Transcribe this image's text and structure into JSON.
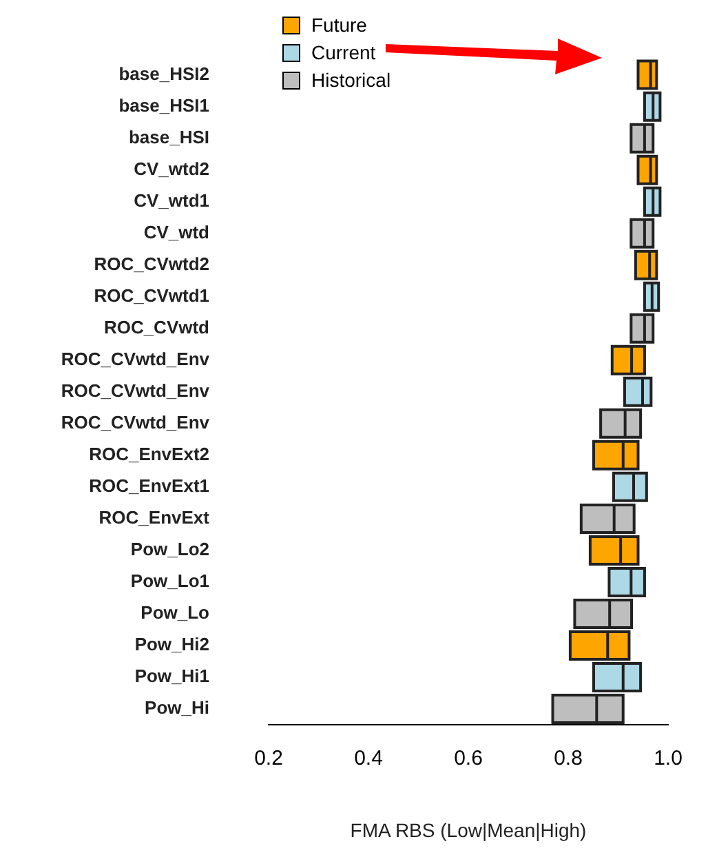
{
  "chart_data": {
    "type": "box",
    "orientation": "horizontal",
    "xlabel": "FMA RBS (Low|Mean|High)",
    "categories": [
      "base_HSI2",
      "base_HSI1",
      "base_HSI",
      "CV_wtd2",
      "CV_wtd1",
      "CV_wtd",
      "ROC_CVwtd2",
      "ROC_CVwtd1",
      "ROC_CVwtd",
      "ROC_CVwtd_Env",
      "ROC_CVwtd_Env",
      "ROC_CVwtd_Env",
      "ROC_EnvExt2",
      "ROC_EnvExt1",
      "ROC_EnvExt",
      "Pow_Lo2",
      "Pow_Lo1",
      "Pow_Lo",
      "Pow_Hi2",
      "Pow_Hi1",
      "Pow_Hi"
    ],
    "xlim": [
      0.2,
      1.0
    ],
    "xticks": [
      {
        "value": 0.2,
        "label": "0.2"
      },
      {
        "value": 0.4,
        "label": "0.4"
      },
      {
        "value": 0.6,
        "label": "0.6"
      },
      {
        "value": 0.8,
        "label": "0.8"
      },
      {
        "value": 1.0,
        "label": "1.0"
      }
    ],
    "legend": "top left",
    "grid": false,
    "series": [
      {
        "name": "Future",
        "color": "#ffa500",
        "boxes": [
          {
            "low": 0.94,
            "q1": 0.94,
            "median": 0.965,
            "q3": 0.977,
            "high": 0.977
          },
          null,
          null,
          {
            "low": 0.94,
            "q1": 0.94,
            "median": 0.965,
            "q3": 0.977,
            "high": 0.977
          },
          null,
          null,
          {
            "low": 0.935,
            "q1": 0.935,
            "median": 0.963,
            "q3": 0.977,
            "high": 0.977
          },
          null,
          null,
          {
            "low": 0.888,
            "q1": 0.888,
            "median": 0.927,
            "q3": 0.953,
            "high": 0.953
          },
          null,
          null,
          {
            "low": 0.851,
            "q1": 0.851,
            "median": 0.91,
            "q3": 0.94,
            "high": 0.94
          },
          null,
          null,
          {
            "low": 0.844,
            "q1": 0.844,
            "median": 0.905,
            "q3": 0.94,
            "high": 0.94
          },
          null,
          null,
          {
            "low": 0.804,
            "q1": 0.804,
            "median": 0.879,
            "q3": 0.922,
            "high": 0.922
          },
          null,
          null
        ]
      },
      {
        "name": "Current",
        "color": "#add8e6",
        "boxes": [
          null,
          {
            "low": 0.953,
            "q1": 0.953,
            "median": 0.97,
            "q3": 0.984,
            "high": 0.984
          },
          null,
          null,
          {
            "low": 0.953,
            "q1": 0.953,
            "median": 0.97,
            "q3": 0.984,
            "high": 0.984
          },
          null,
          null,
          {
            "low": 0.953,
            "q1": 0.953,
            "median": 0.968,
            "q3": 0.981,
            "high": 0.981
          },
          null,
          null,
          {
            "low": 0.913,
            "q1": 0.913,
            "median": 0.949,
            "q3": 0.966,
            "high": 0.966
          },
          null,
          null,
          {
            "low": 0.891,
            "q1": 0.891,
            "median": 0.931,
            "q3": 0.957,
            "high": 0.957
          },
          null,
          null,
          {
            "low": 0.882,
            "q1": 0.882,
            "median": 0.926,
            "q3": 0.953,
            "high": 0.953
          },
          null,
          null,
          {
            "low": 0.851,
            "q1": 0.851,
            "median": 0.91,
            "q3": 0.945,
            "high": 0.945
          },
          null
        ]
      },
      {
        "name": "Historical",
        "color": "#bebebe",
        "boxes": [
          null,
          null,
          {
            "low": 0.926,
            "q1": 0.926,
            "median": 0.953,
            "q3": 0.97,
            "high": 0.97
          },
          null,
          null,
          {
            "low": 0.926,
            "q1": 0.926,
            "median": 0.953,
            "q3": 0.97,
            "high": 0.97
          },
          null,
          null,
          {
            "low": 0.926,
            "q1": 0.926,
            "median": 0.953,
            "q3": 0.97,
            "high": 0.97
          },
          null,
          null,
          {
            "low": 0.865,
            "q1": 0.865,
            "median": 0.914,
            "q3": 0.945,
            "high": 0.945
          },
          null,
          null,
          {
            "low": 0.826,
            "q1": 0.826,
            "median": 0.892,
            "q3": 0.932,
            "high": 0.932
          },
          null,
          null,
          {
            "low": 0.813,
            "q1": 0.813,
            "median": 0.883,
            "q3": 0.927,
            "high": 0.927
          },
          null,
          null,
          {
            "low": 0.769,
            "q1": 0.769,
            "median": 0.857,
            "q3": 0.91,
            "high": 0.91
          }
        ]
      }
    ]
  }
}
